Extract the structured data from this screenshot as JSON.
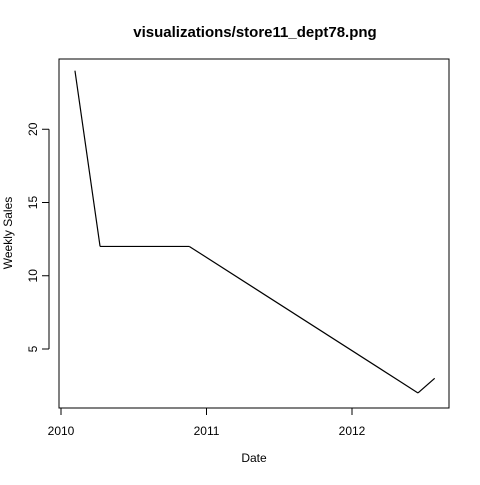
{
  "chart_data": {
    "type": "line",
    "title": "visualizations/store11_dept78.png",
    "xlabel": "Date",
    "ylabel": "Weekly Sales",
    "x_ticks": [
      "2010",
      "2011",
      "2012"
    ],
    "y_ticks": [
      "5",
      "10",
      "15",
      "20"
    ],
    "grid": false,
    "series": [
      {
        "x": [
          "2010-02-05",
          "2010-04-09",
          "2010-11-19",
          "2012-06-15",
          "2012-07-27"
        ],
        "values": [
          24,
          12,
          12,
          2,
          3
        ]
      }
    ],
    "line_color": "#000000"
  }
}
